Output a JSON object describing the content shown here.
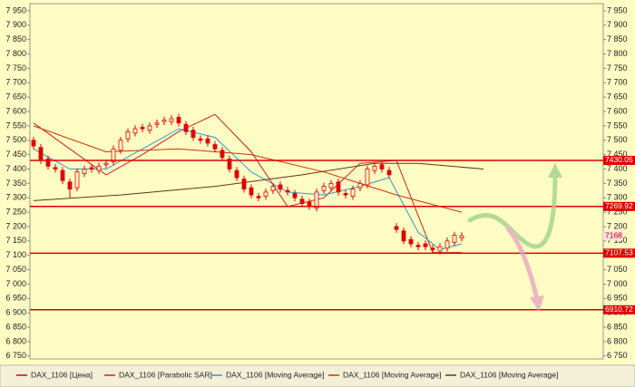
{
  "chart_data": {
    "type": "candlestick",
    "ylim": [
      6740,
      7975
    ],
    "xlim": [
      -0.5,
      78.5
    ],
    "yticks": [
      {
        "value": 6750,
        "label": "6 750"
      },
      {
        "value": 6800,
        "label": "6 800"
      },
      {
        "value": 6850,
        "label": "6 850"
      },
      {
        "value": 6900,
        "label": "6 900"
      },
      {
        "value": 6950,
        "label": "6 950"
      },
      {
        "value": 7000,
        "label": "7 000"
      },
      {
        "value": 7050,
        "label": "7 050"
      },
      {
        "value": 7100,
        "label": "7 100"
      },
      {
        "value": 7150,
        "label": "7 150"
      },
      {
        "value": 7200,
        "label": "7 200"
      },
      {
        "value": 7250,
        "label": "7 250"
      },
      {
        "value": 7300,
        "label": "7 300"
      },
      {
        "value": 7350,
        "label": "7 350"
      },
      {
        "value": 7400,
        "label": "7 400"
      },
      {
        "value": 7450,
        "label": "7 450"
      },
      {
        "value": 7500,
        "label": "7 500"
      },
      {
        "value": 7550,
        "label": "7 550"
      },
      {
        "value": 7600,
        "label": "7 600"
      },
      {
        "value": 7650,
        "label": "7 650"
      },
      {
        "value": 7700,
        "label": "7 700"
      },
      {
        "value": 7750,
        "label": "7 750"
      },
      {
        "value": 7800,
        "label": "7 800"
      },
      {
        "value": 7850,
        "label": "7 850"
      },
      {
        "value": 7900,
        "label": "7 900"
      },
      {
        "value": 7950,
        "label": "7 950"
      }
    ],
    "candles": {
      "name": "DAX_1106 [Цена]",
      "color": "#e00000",
      "open": [
        7500,
        7475,
        7435,
        7405,
        7395,
        7355,
        7335,
        7385,
        7405,
        7395,
        7415,
        7425,
        7465,
        7505,
        7525,
        7545,
        7535,
        7555,
        7565,
        7565,
        7580,
        7555,
        7535,
        7505,
        7505,
        7485,
        7465,
        7435,
        7395,
        7365,
        7335,
        7305,
        7305,
        7325,
        7345,
        7325,
        7315,
        7295,
        7285,
        7265,
        7325,
        7335,
        7355,
        7315,
        7305,
        7335,
        7345,
        7395,
        7415,
        7395,
        7200,
        7185,
        7155,
        7135,
        7140,
        7125,
        7115,
        7125,
        7145,
        7160
      ],
      "high": [
        7512,
        7487,
        7447,
        7417,
        7407,
        7367,
        7402,
        7412,
        7417,
        7422,
        7432,
        7482,
        7512,
        7542,
        7552,
        7557,
        7562,
        7572,
        7582,
        7587,
        7592,
        7567,
        7547,
        7517,
        7517,
        7497,
        7477,
        7447,
        7407,
        7377,
        7347,
        7317,
        7332,
        7352,
        7357,
        7337,
        7327,
        7307,
        7297,
        7332,
        7352,
        7362,
        7367,
        7327,
        7342,
        7362,
        7412,
        7422,
        7427,
        7407,
        7212,
        7197,
        7167,
        7147,
        7152,
        7137,
        7142,
        7162,
        7182,
        7180
      ],
      "low": [
        7468,
        7418,
        7398,
        7388,
        7348,
        7300,
        7323,
        7373,
        7388,
        7383,
        7403,
        7413,
        7453,
        7493,
        7513,
        7528,
        7523,
        7543,
        7553,
        7553,
        7548,
        7518,
        7498,
        7488,
        7478,
        7458,
        7428,
        7388,
        7358,
        7318,
        7298,
        7288,
        7293,
        7313,
        7318,
        7308,
        7288,
        7268,
        7258,
        7253,
        7313,
        7323,
        7308,
        7298,
        7293,
        7323,
        7333,
        7383,
        7388,
        7368,
        7178,
        7138,
        7128,
        7118,
        7118,
        7108,
        7103,
        7113,
        7133,
        7148
      ],
      "close": [
        7480,
        7430,
        7410,
        7400,
        7360,
        7330,
        7390,
        7400,
        7400,
        7410,
        7420,
        7470,
        7500,
        7530,
        7540,
        7540,
        7550,
        7560,
        7570,
        7575,
        7560,
        7530,
        7510,
        7500,
        7490,
        7470,
        7440,
        7400,
        7370,
        7330,
        7310,
        7300,
        7320,
        7340,
        7330,
        7320,
        7300,
        7280,
        7270,
        7320,
        7340,
        7350,
        7320,
        7310,
        7330,
        7350,
        7400,
        7410,
        7400,
        7380,
        7190,
        7150,
        7140,
        7130,
        7130,
        7120,
        7130,
        7150,
        7170,
        7168
      ]
    },
    "series": [
      {
        "name": "DAX_1106 [Parabolic SAR]",
        "color": "#d02020",
        "x": [
          0,
          5,
          10,
          15,
          20,
          25,
          30,
          35,
          40,
          45,
          50,
          55,
          59
        ],
        "values": [
          7560,
          7470,
          7380,
          7450,
          7530,
          7590,
          7460,
          7270,
          7300,
          7420,
          7430,
          7110,
          7110
        ]
      },
      {
        "name": "DAX_1106 [Moving Average]",
        "color": "#3399cc",
        "x": [
          0,
          5,
          10,
          15,
          20,
          25,
          30,
          35,
          40,
          45,
          49,
          53,
          56,
          59
        ],
        "values": [
          7470,
          7400,
          7400,
          7470,
          7540,
          7510,
          7390,
          7320,
          7310,
          7340,
          7370,
          7180,
          7120,
          7140
        ]
      },
      {
        "name": "DAX_1106 [Moving Average]",
        "color": "#cc3300",
        "x": [
          0,
          10,
          20,
          30,
          40,
          50,
          59
        ],
        "values": [
          7550,
          7460,
          7470,
          7450,
          7390,
          7310,
          7250
        ]
      },
      {
        "name": "DAX_1106 [Moving Average]",
        "color": "#663311",
        "x": [
          0,
          12,
          25,
          37,
          47,
          53,
          62
        ],
        "values": [
          7290,
          7310,
          7340,
          7380,
          7420,
          7420,
          7400
        ]
      }
    ],
    "levels": [
      7430.05,
      7269.92,
      7107.53,
      6910.72
    ],
    "level_color": "#e00000"
  }
}
